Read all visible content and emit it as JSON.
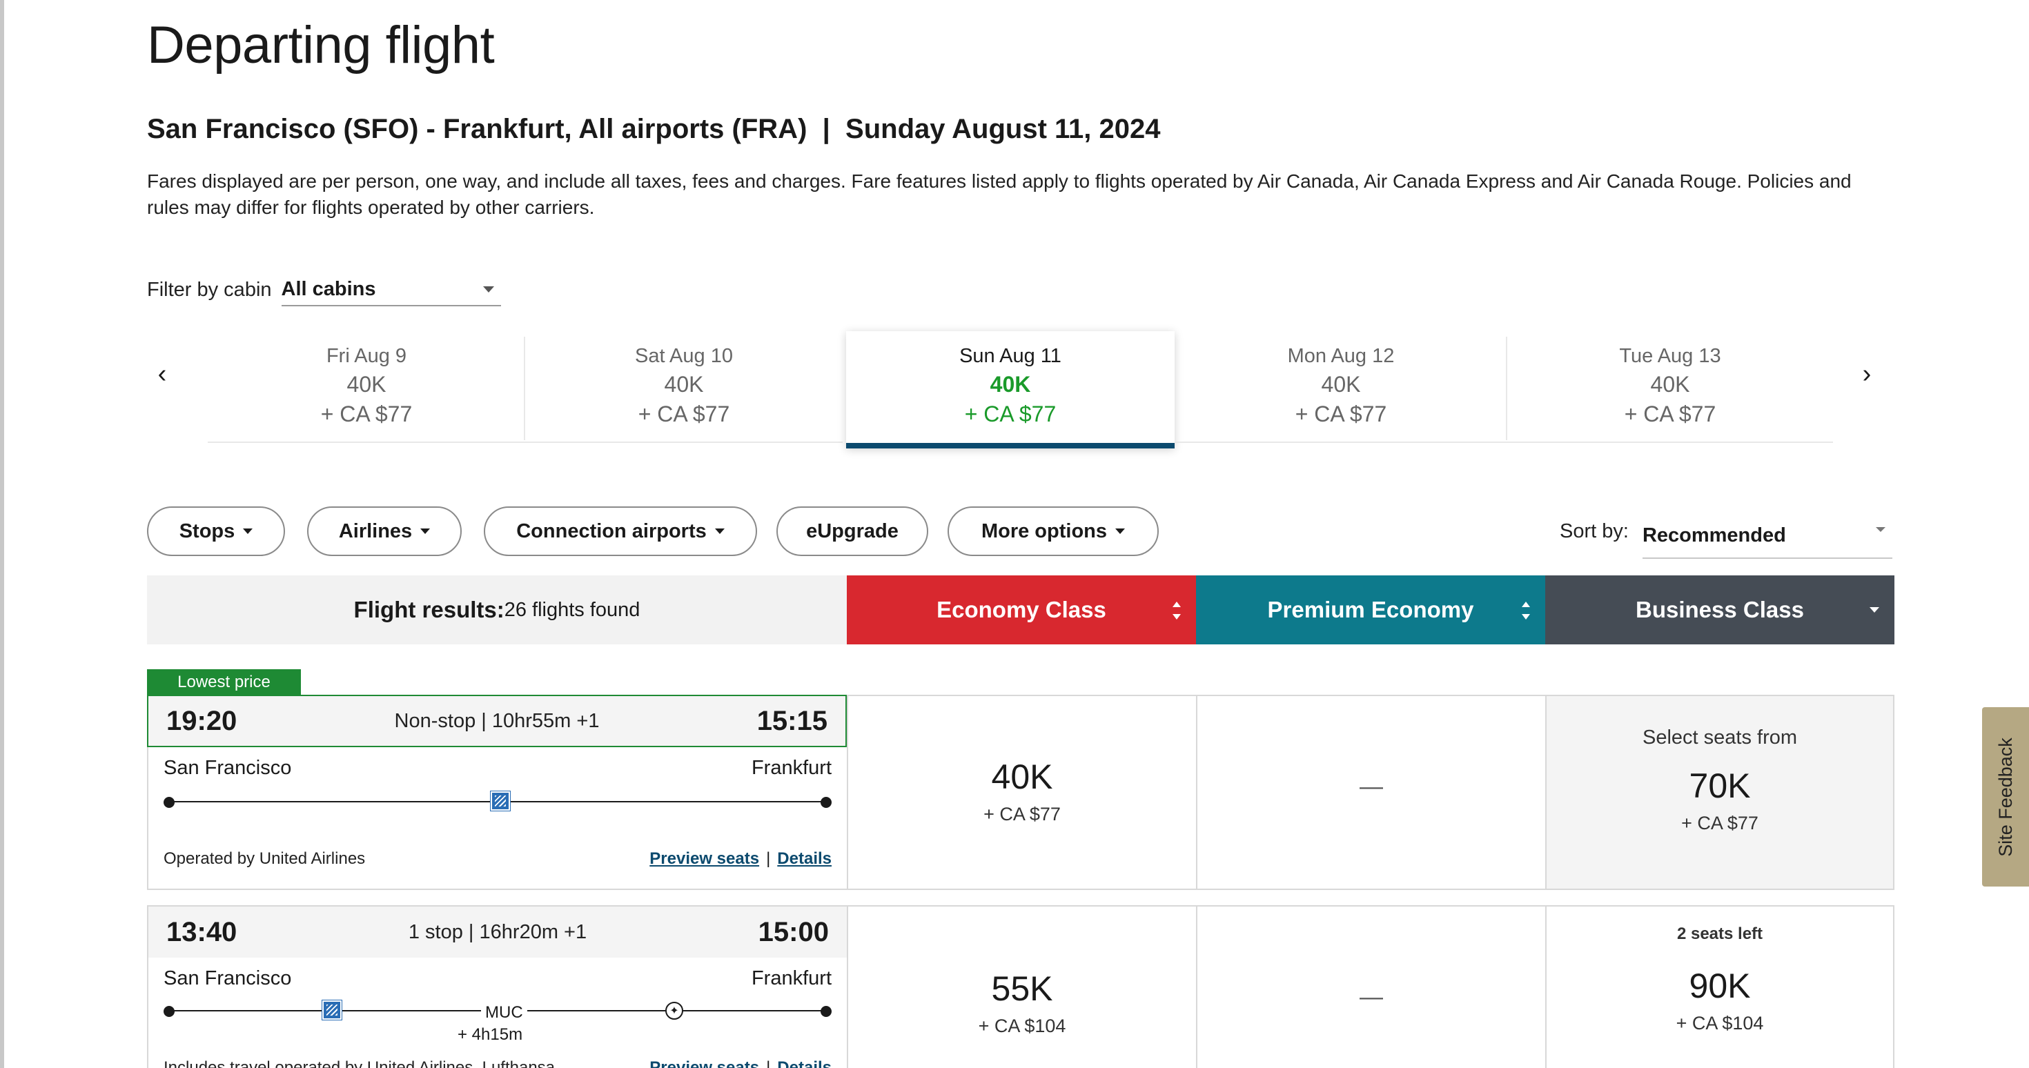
{
  "page": {
    "title": "Departing flight",
    "subtitle": "San Francisco (SFO) - Frankfurt, All airports (FRA)  |  Sunday August 11, 2024",
    "description": "Fares displayed are per person, one way, and include all taxes, fees and charges. Fare features listed apply to flights operated by Air Canada, Air Canada Express and Air Canada Rouge. Policies and rules may differ for flights operated by other carriers."
  },
  "filter": {
    "label": "Filter by cabin",
    "value": "All cabins"
  },
  "date_strip": {
    "prev_icon": "chevron-left-icon",
    "next_icon": "chevron-right-icon",
    "dates": [
      {
        "date": "Fri Aug 9",
        "points": "40K",
        "tax": "+ CA $77"
      },
      {
        "date": "Sat Aug 10",
        "points": "40K",
        "tax": "+ CA $77"
      },
      {
        "date": "Sun Aug 11",
        "points": "40K",
        "tax": "+ CA $77"
      },
      {
        "date": "Mon Aug 12",
        "points": "40K",
        "tax": "+ CA $77"
      },
      {
        "date": "Tue Aug 13",
        "points": "40K",
        "tax": "+ CA $77"
      }
    ],
    "selected_index": 2,
    "selected_color": "#1a9a2a",
    "underline_color": "#0c4a6e"
  },
  "filters": {
    "stops": "Stops",
    "airlines": "Airlines",
    "connection_airports": "Connection airports",
    "eupgrade": "eUpgrade",
    "more_options": "More options"
  },
  "sort": {
    "label": "Sort by:",
    "value": "Recommended"
  },
  "results_header": {
    "label": "Flight results:",
    "count": "26 flights found",
    "economy": "Economy Class",
    "premium": "Premium Economy",
    "business": "Business Class",
    "economy_color": "#d8282f",
    "premium_color": "#0d7a8c",
    "business_color": "#454c55"
  },
  "flights": [
    {
      "badge": "Lowest price",
      "depart": "19:20",
      "summary": "Non-stop | 10hr55m +1",
      "arrive": "15:15",
      "origin": "San Francisco",
      "destination": "Frankfurt",
      "operated_by": "Operated by United Airlines",
      "preview_seats": "Preview seats",
      "separator": "|",
      "details": "Details",
      "economy": {
        "points": "40K",
        "tax": "+ CA $77"
      },
      "premium": {
        "text": "—"
      },
      "business": {
        "note": "Select seats from",
        "points": "70K",
        "tax": "+ CA $77"
      }
    },
    {
      "depart": "13:40",
      "summary": "1 stop | 16hr20m +1",
      "arrive": "15:00",
      "origin": "San Francisco",
      "destination": "Frankfurt",
      "stop_airport": "MUC",
      "layover": "+ 4h15m",
      "operated_by": "Includes travel operated by United Airlines, Lufthansa",
      "preview_seats": "Preview seats",
      "separator": "|",
      "details": "Details",
      "economy": {
        "points": "55K",
        "tax": "+ CA $104"
      },
      "premium": {
        "text": "—"
      },
      "business": {
        "note": "2 seats left",
        "points": "90K",
        "tax": "+ CA $104"
      }
    }
  ],
  "feedback": {
    "label": "Site Feedback"
  }
}
